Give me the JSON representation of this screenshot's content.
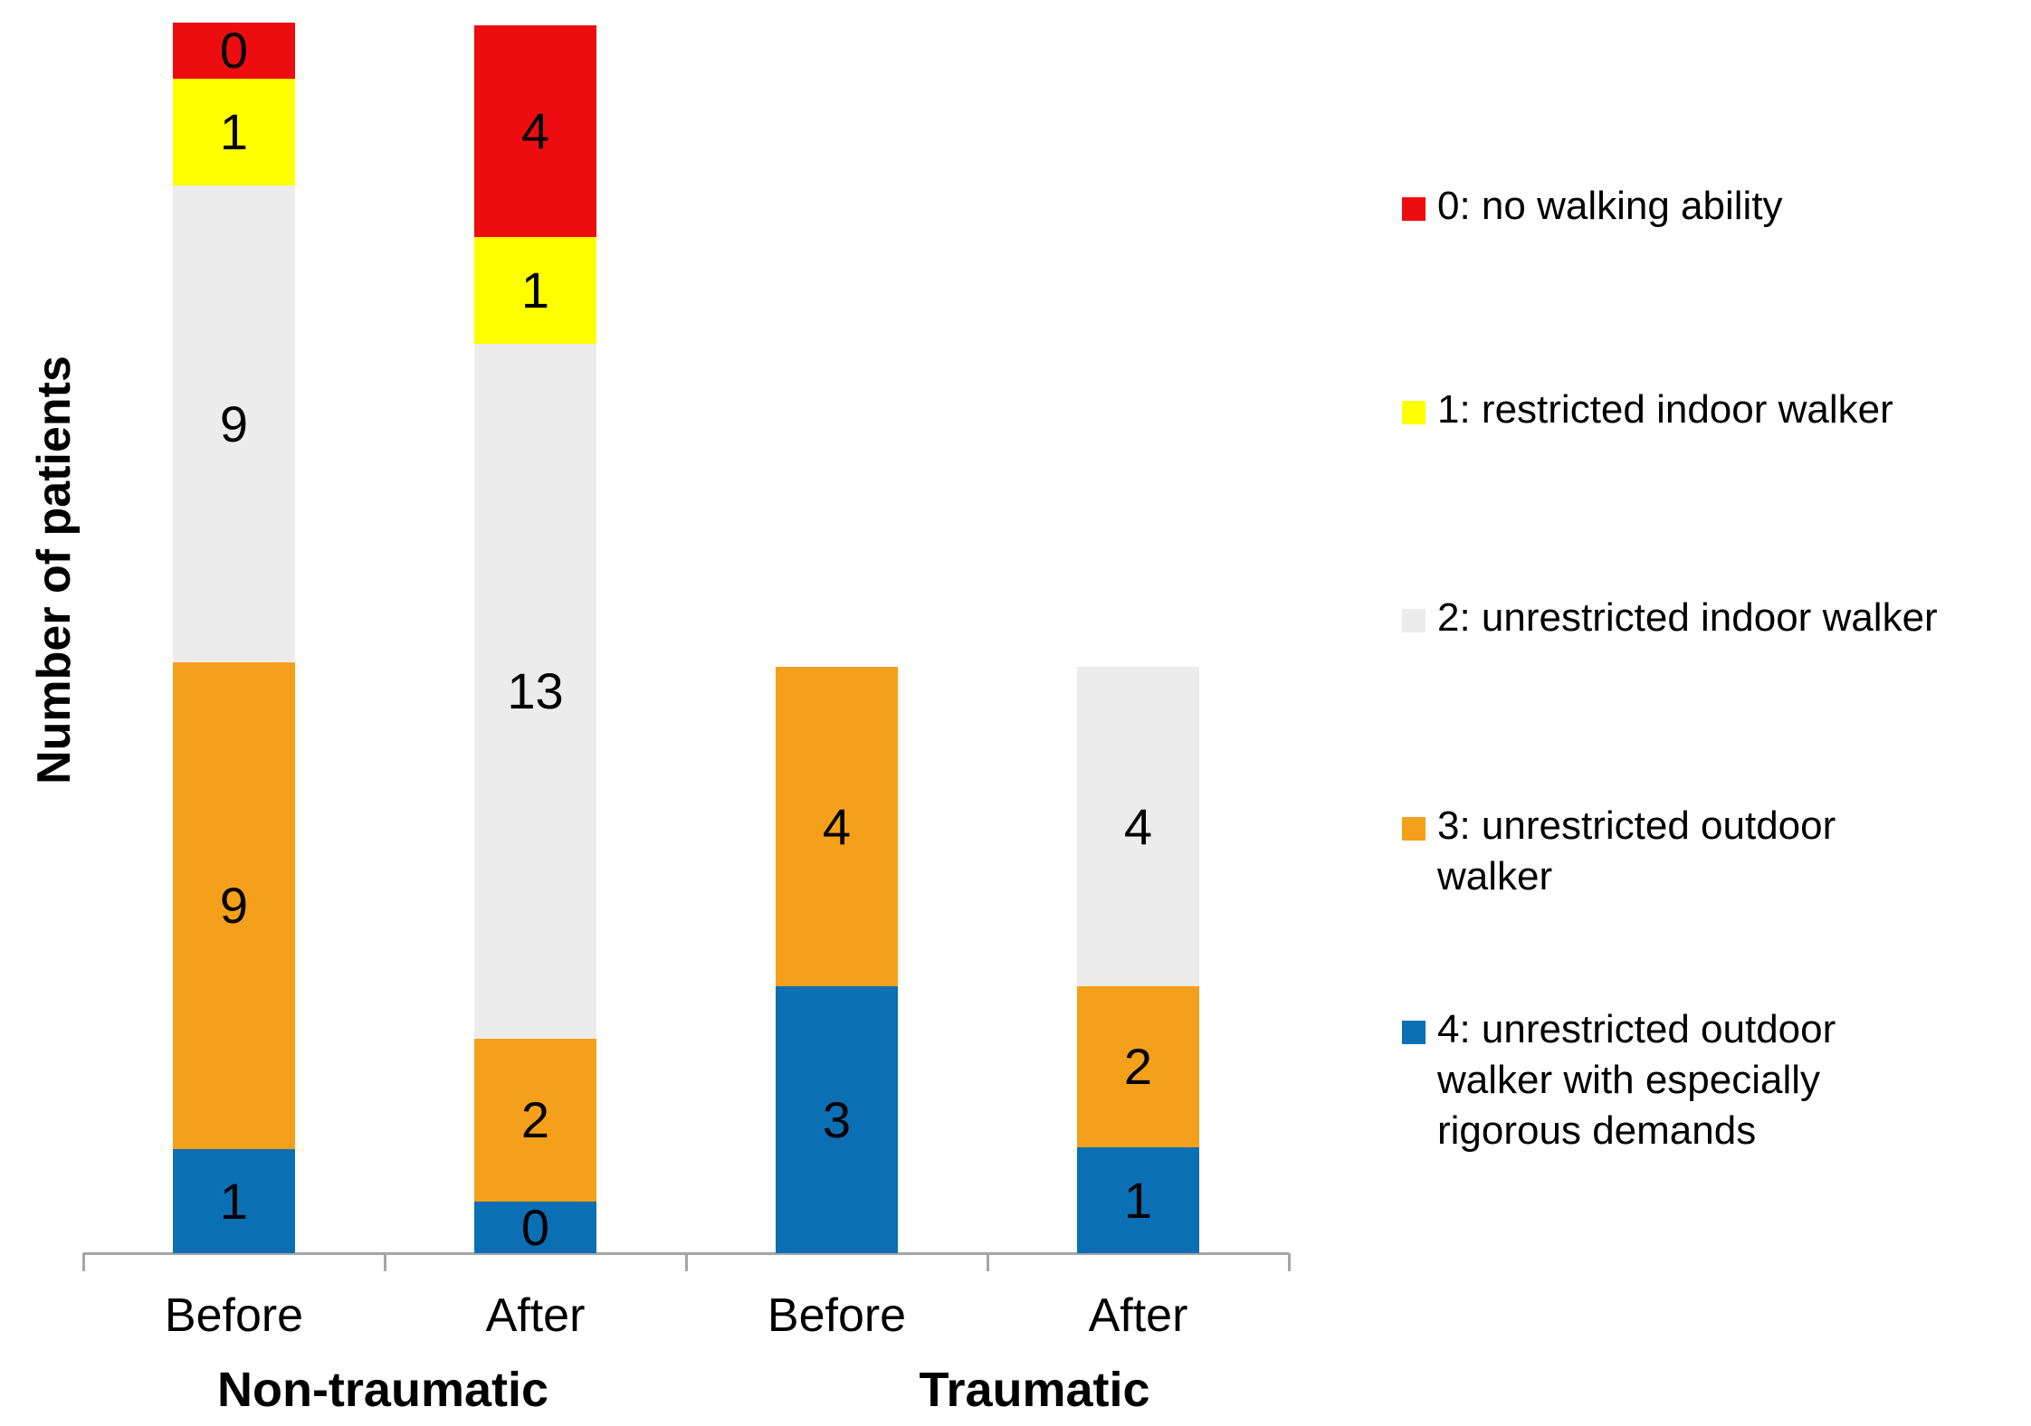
{
  "chart_data": {
    "type": "bar",
    "stacked": true,
    "title": "",
    "ylabel": "Number of patients",
    "xlabel": "",
    "grid": false,
    "legend_position": "right",
    "series": [
      {
        "name": "0: no walking ability",
        "color": "#ed0d10"
      },
      {
        "name": "1: restricted indoor walker",
        "color": "#ffff00"
      },
      {
        "name": "2: unrestricted indoor walker",
        "color": "#ececec"
      },
      {
        "name": "3: unrestricted outdoor walker",
        "color": "#f5a01a"
      },
      {
        "name": "4: unrestricted outdoor walker with especially rigorous demands",
        "color": "#0b6fb4"
      }
    ],
    "groups": [
      {
        "label": "Non-traumatic",
        "bars": [
          {
            "category": "Before",
            "total": 20,
            "segments": [
              {
                "series": 0,
                "value": 0,
                "display_h": 62
              },
              {
                "series": 1,
                "value": 1,
                "display_h": 118
              },
              {
                "series": 2,
                "value": 9,
                "display_h": 527
              },
              {
                "series": 3,
                "value": 9,
                "display_h": 538
              },
              {
                "series": 4,
                "value": 1,
                "display_h": 115
              }
            ]
          },
          {
            "category": "After",
            "total": 20,
            "segments": [
              {
                "series": 0,
                "value": 4,
                "display_h": 234
              },
              {
                "series": 1,
                "value": 1,
                "display_h": 118
              },
              {
                "series": 2,
                "value": 13,
                "display_h": 768
              },
              {
                "series": 3,
                "value": 2,
                "display_h": 180
              },
              {
                "series": 4,
                "value": 0,
                "display_h": 57
              }
            ]
          }
        ]
      },
      {
        "label": "Traumatic",
        "bars": [
          {
            "category": "Before",
            "total": 7,
            "segments": [
              {
                "series": 3,
                "value": 4,
                "display_h": 353
              },
              {
                "series": 4,
                "value": 3,
                "display_h": 295
              }
            ]
          },
          {
            "category": "After",
            "total": 7,
            "segments": [
              {
                "series": 2,
                "value": 4,
                "display_h": 353
              },
              {
                "series": 3,
                "value": 2,
                "display_h": 178
              },
              {
                "series": 4,
                "value": 1,
                "display_h": 117
              }
            ]
          }
        ]
      }
    ]
  },
  "legend": {
    "items": [
      {
        "color": "#ed0d10",
        "label_lines": [
          "0: no walking ability"
        ]
      },
      {
        "color": "#ffff00",
        "label_lines": [
          "1: restricted indoor walker"
        ]
      },
      {
        "color": "#ececec",
        "label_lines": [
          "2: unrestricted indoor walker"
        ]
      },
      {
        "color": "#f5a01a",
        "label_lines": [
          "3: unrestricted outdoor",
          "walker"
        ]
      },
      {
        "color": "#0b6fb4",
        "label_lines": [
          "4: unrestricted outdoor",
          "walker with especially",
          "rigorous demands"
        ]
      }
    ]
  },
  "axis": {
    "color": "#a6a6a6"
  }
}
